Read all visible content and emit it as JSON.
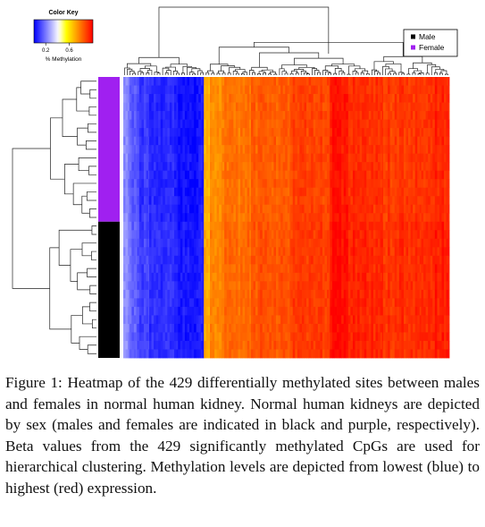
{
  "chart_data": {
    "type": "heatmap",
    "color_key": {
      "title": "Color Key",
      "ticks": [
        {
          "value": 0.2,
          "label": "0.2"
        },
        {
          "value": 0.6,
          "label": "0.6"
        }
      ],
      "label": "% Methylation",
      "range": [
        0,
        1
      ],
      "colors": [
        "#0000ff",
        "#ffffff",
        "#ffff00",
        "#ff0000"
      ]
    },
    "legend": {
      "placement": "top-right",
      "entries": [
        {
          "name": "Male",
          "color": "#000000"
        },
        {
          "name": "Female",
          "color": "#a020f0"
        }
      ]
    },
    "samples": {
      "groups": [
        {
          "group": "Female",
          "count": 17
        },
        {
          "group": "Male",
          "count": 16
        }
      ]
    },
    "sites_total": 429,
    "column_blocks": [
      {
        "sites": 8,
        "value": 0.22
      },
      {
        "sites": 10,
        "value": 0.15
      },
      {
        "sites": 16,
        "value": 0.1
      },
      {
        "sites": 38,
        "value": 0.06
      },
      {
        "sites": 34,
        "value": 0.03
      },
      {
        "sites": 8,
        "value": 0.68
      },
      {
        "sites": 16,
        "value": 0.76
      },
      {
        "sites": 38,
        "value": 0.8
      },
      {
        "sites": 52,
        "value": 0.84
      },
      {
        "sites": 52,
        "value": 0.88
      },
      {
        "sites": 24,
        "value": 0.97
      },
      {
        "sites": 46,
        "value": 0.92
      },
      {
        "sites": 50,
        "value": 0.9
      },
      {
        "sites": 37,
        "value": 0.93
      }
    ]
  },
  "caption": {
    "label": "Figure 1:",
    "text": " Heatmap of the 429 differentially methylated sites between males and females in normal human kidney. Normal human kidneys are depicted by sex (males and females are indicated in black and purple, respectively). Beta values from the 429 significantly methylated CpGs are used for hierarchical clustering. Methylation levels are depicted from lowest (blue) to highest (red) expression."
  }
}
